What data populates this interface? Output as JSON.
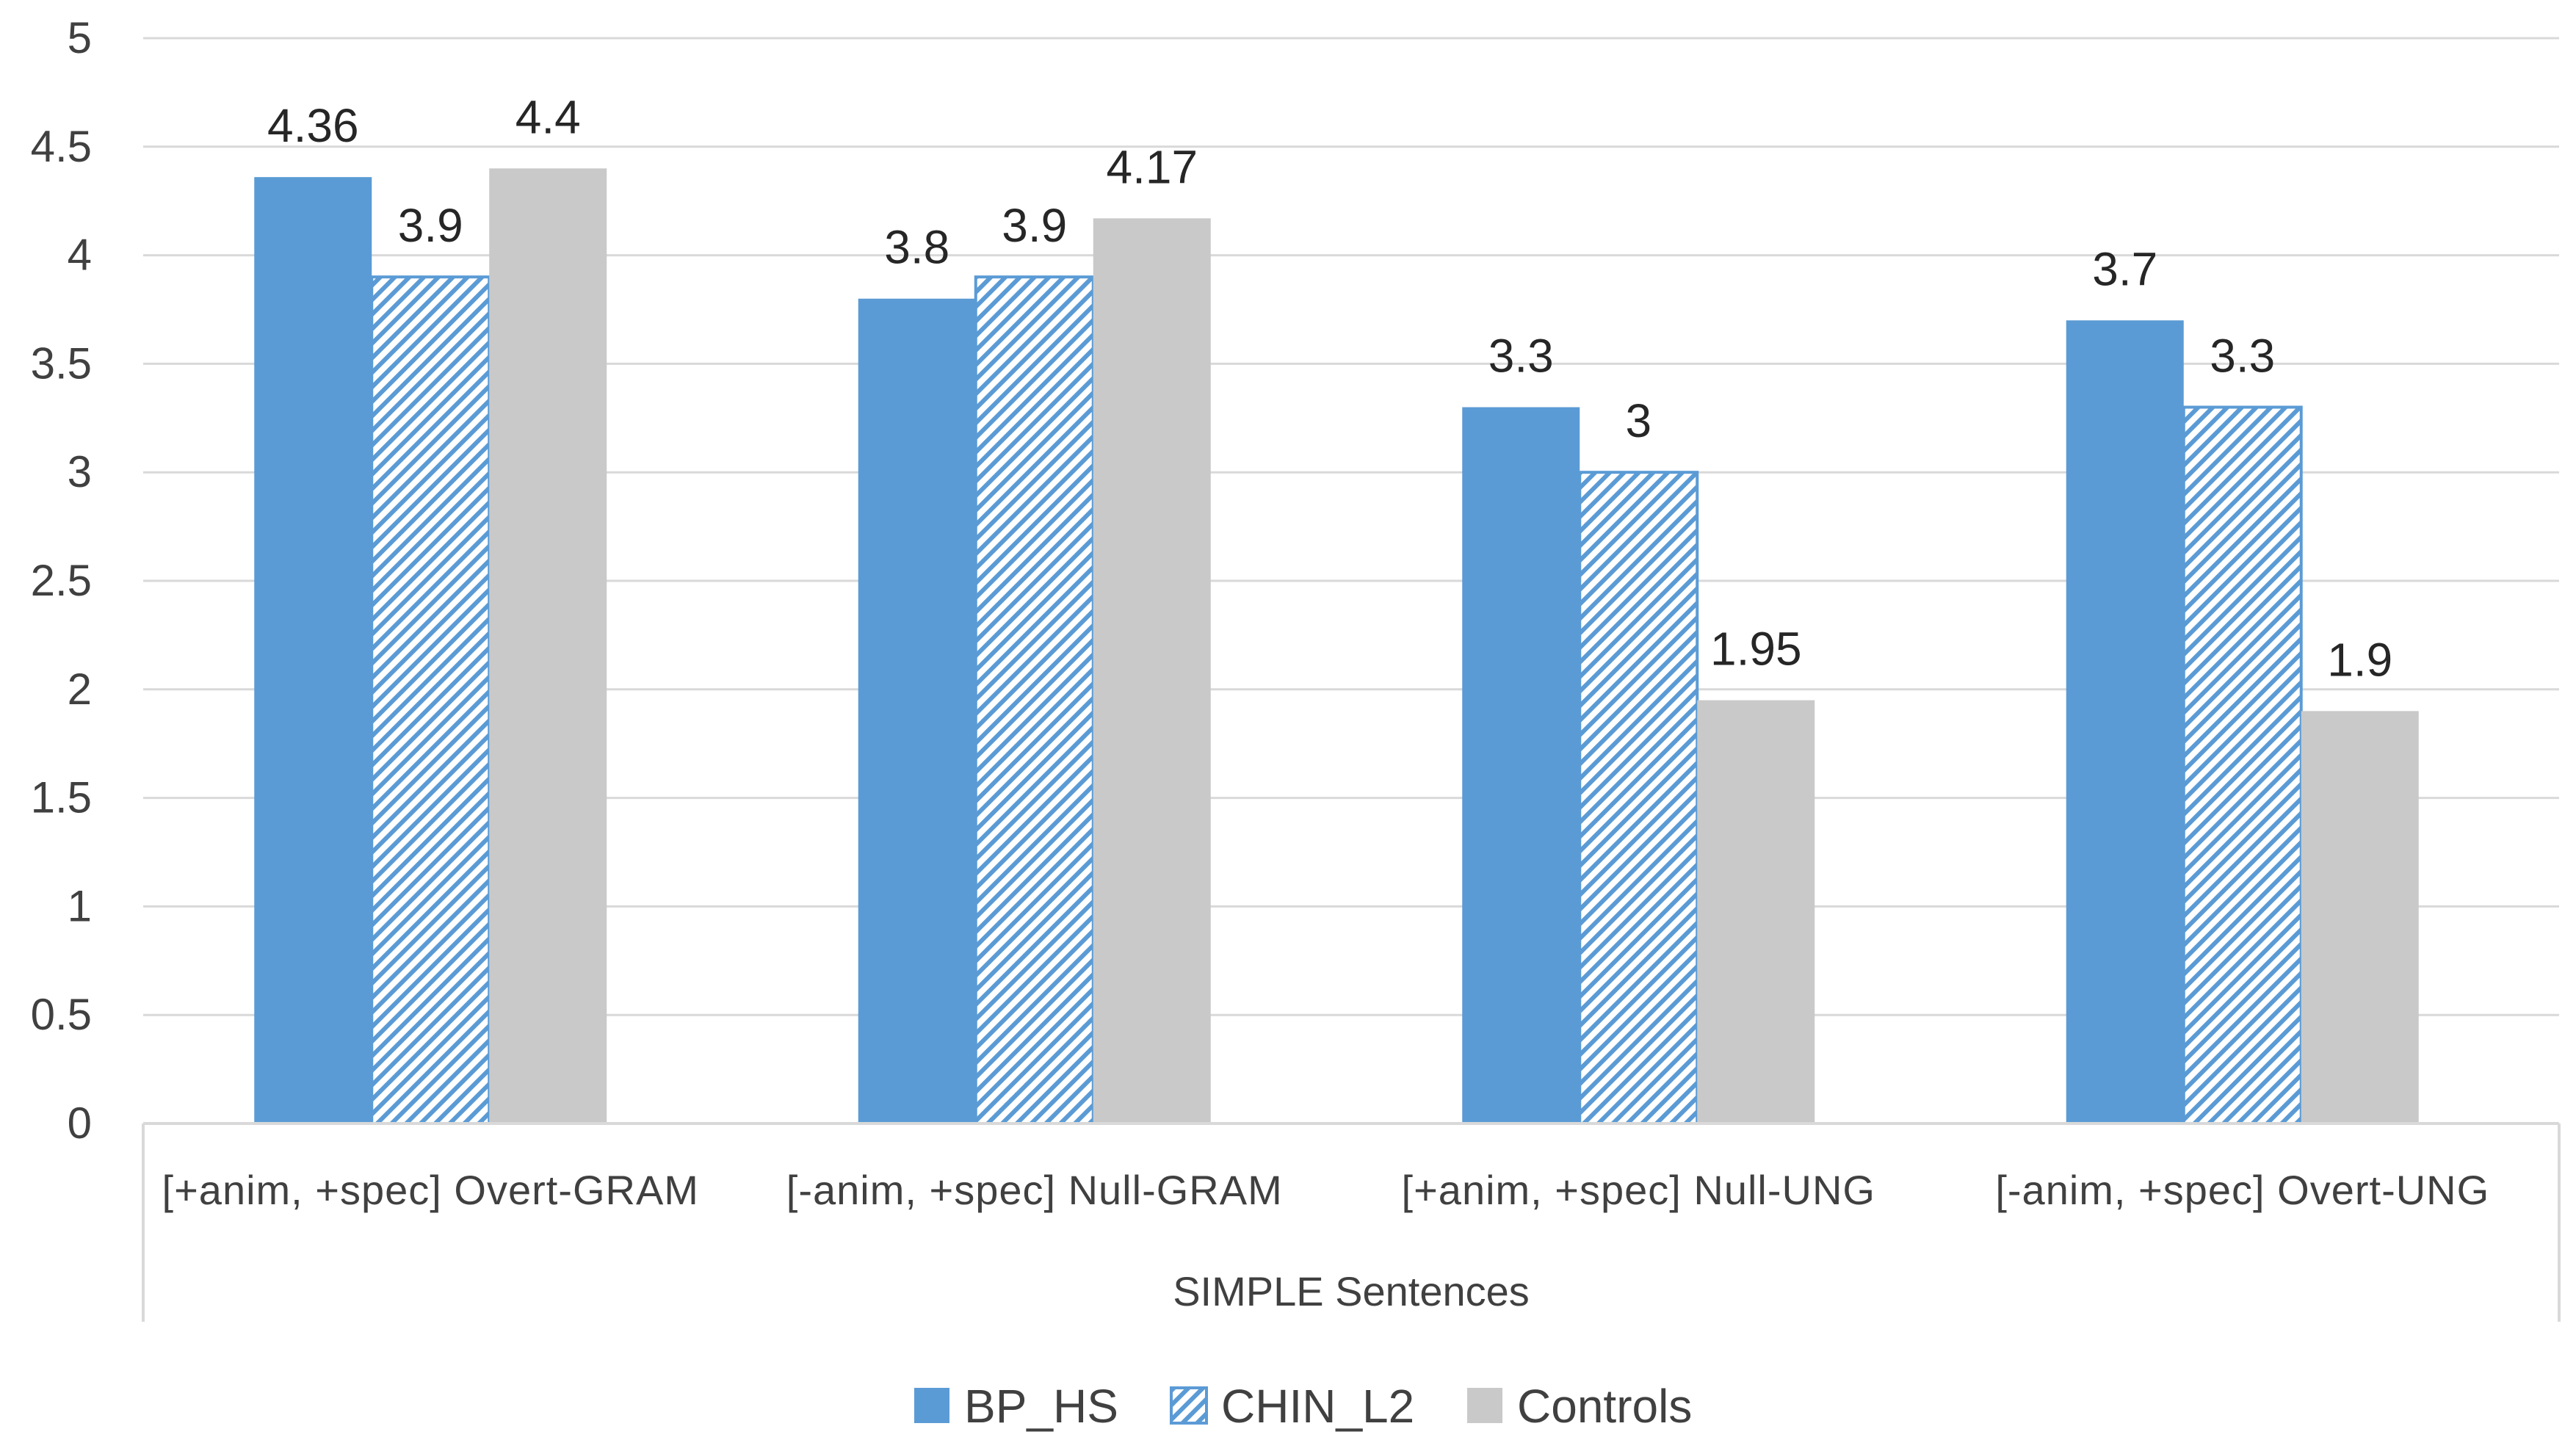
{
  "chart_data": {
    "type": "bar",
    "group_label": "SIMPLE Sentences",
    "categories": [
      "[+anim, +spec] Overt-GRAM",
      "[-anim, +spec] Null-GRAM",
      "[+anim, +spec] Null-UNG",
      "[-anim, +spec] Overt-UNG"
    ],
    "series": [
      {
        "name": "BP_HS",
        "style": "solid",
        "color": "#5b9bd5",
        "values": [
          4.36,
          3.8,
          3.3,
          3.7
        ]
      },
      {
        "name": "CHIN_L2",
        "style": "hatched",
        "color": "#5b9bd5",
        "values": [
          3.9,
          3.9,
          3,
          3.3
        ]
      },
      {
        "name": "Controls",
        "style": "solid",
        "color": "#c9c9c9",
        "values": [
          4.4,
          4.17,
          1.95,
          1.9
        ]
      }
    ],
    "data_labels": [
      [
        "4.36",
        "3.8",
        "3.3",
        "3.7"
      ],
      [
        "3.9",
        "3.9",
        "3",
        "3.3"
      ],
      [
        "4.4",
        "4.17",
        "1.95",
        "1.9"
      ]
    ],
    "ylim": [
      0,
      5
    ],
    "yticks": [
      "0",
      "0.5",
      "1",
      "1.5",
      "2",
      "2.5",
      "3",
      "3.5",
      "4",
      "4.5",
      "5"
    ],
    "grid": true,
    "legend_position": "bottom-center",
    "title": "",
    "xlabel": "",
    "ylabel": ""
  }
}
